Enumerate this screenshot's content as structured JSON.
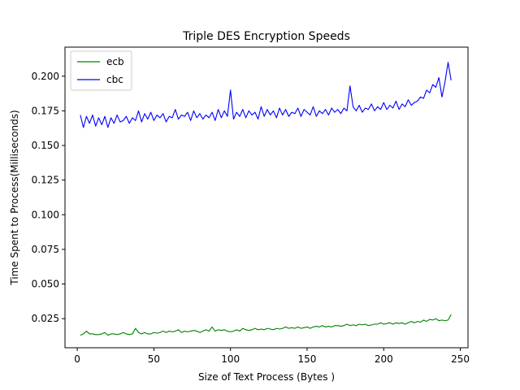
{
  "chart_data": {
    "type": "line",
    "title": "Triple DES Encryption Speeds",
    "xlabel": "Size of Text Process (Bytes )",
    "ylabel": "Time Spent to Process(Milliseconds)",
    "xlim": [
      -8,
      255
    ],
    "ylim": [
      0.004,
      0.221
    ],
    "xticks": [
      0,
      50,
      100,
      150,
      200,
      250
    ],
    "xtick_labels": [
      "0",
      "50",
      "100",
      "150",
      "200",
      "250"
    ],
    "yticks": [
      0.025,
      0.05,
      0.075,
      0.1,
      0.125,
      0.15,
      0.175,
      0.2
    ],
    "ytick_labels": [
      "0.025",
      "0.050",
      "0.075",
      "0.100",
      "0.125",
      "0.150",
      "0.175",
      "0.200"
    ],
    "legend_position": "upper-left",
    "grid": false,
    "series": [
      {
        "name": "ecb",
        "color": "#008000",
        "x": [
          2,
          4,
          6,
          8,
          10,
          12,
          14,
          16,
          18,
          20,
          22,
          24,
          26,
          28,
          30,
          32,
          34,
          36,
          38,
          40,
          42,
          44,
          46,
          48,
          50,
          52,
          54,
          56,
          58,
          60,
          62,
          64,
          66,
          68,
          70,
          72,
          74,
          76,
          78,
          80,
          82,
          84,
          86,
          88,
          90,
          92,
          94,
          96,
          98,
          100,
          102,
          104,
          106,
          108,
          110,
          112,
          114,
          116,
          118,
          120,
          122,
          124,
          126,
          128,
          130,
          132,
          134,
          136,
          138,
          140,
          142,
          144,
          146,
          148,
          150,
          152,
          154,
          156,
          158,
          160,
          162,
          164,
          166,
          168,
          170,
          172,
          174,
          176,
          178,
          180,
          182,
          184,
          186,
          188,
          190,
          192,
          194,
          196,
          198,
          200,
          202,
          204,
          206,
          208,
          210,
          212,
          214,
          216,
          218,
          220,
          222,
          224,
          226,
          228,
          230,
          232,
          234,
          236,
          238,
          240,
          242,
          244
        ],
        "values": [
          0.013,
          0.014,
          0.016,
          0.014,
          0.014,
          0.0135,
          0.0135,
          0.014,
          0.015,
          0.013,
          0.014,
          0.014,
          0.0135,
          0.014,
          0.015,
          0.014,
          0.0135,
          0.014,
          0.018,
          0.015,
          0.014,
          0.015,
          0.014,
          0.014,
          0.015,
          0.0145,
          0.015,
          0.016,
          0.015,
          0.016,
          0.0155,
          0.016,
          0.017,
          0.015,
          0.016,
          0.0155,
          0.016,
          0.0165,
          0.016,
          0.015,
          0.016,
          0.017,
          0.016,
          0.019,
          0.016,
          0.017,
          0.0165,
          0.017,
          0.016,
          0.0155,
          0.016,
          0.017,
          0.016,
          0.018,
          0.017,
          0.0165,
          0.017,
          0.018,
          0.017,
          0.0175,
          0.017,
          0.018,
          0.0175,
          0.017,
          0.018,
          0.0175,
          0.018,
          0.019,
          0.018,
          0.0185,
          0.018,
          0.019,
          0.018,
          0.0185,
          0.019,
          0.018,
          0.019,
          0.0195,
          0.019,
          0.02,
          0.019,
          0.0195,
          0.019,
          0.02,
          0.02,
          0.0195,
          0.02,
          0.021,
          0.02,
          0.0205,
          0.02,
          0.021,
          0.0205,
          0.021,
          0.02,
          0.0205,
          0.021,
          0.021,
          0.022,
          0.021,
          0.0215,
          0.022,
          0.021,
          0.022,
          0.0215,
          0.022,
          0.021,
          0.022,
          0.023,
          0.022,
          0.023,
          0.0225,
          0.024,
          0.023,
          0.0245,
          0.024,
          0.025,
          0.0235,
          0.024,
          0.0235,
          0.024,
          0.028
        ]
      },
      {
        "name": "cbc",
        "color": "#0000ff",
        "x": [
          2,
          4,
          6,
          8,
          10,
          12,
          14,
          16,
          18,
          20,
          22,
          24,
          26,
          28,
          30,
          32,
          34,
          36,
          38,
          40,
          42,
          44,
          46,
          48,
          50,
          52,
          54,
          56,
          58,
          60,
          62,
          64,
          66,
          68,
          70,
          72,
          74,
          76,
          78,
          80,
          82,
          84,
          86,
          88,
          90,
          92,
          94,
          96,
          98,
          100,
          102,
          104,
          106,
          108,
          110,
          112,
          114,
          116,
          118,
          120,
          122,
          124,
          126,
          128,
          130,
          132,
          134,
          136,
          138,
          140,
          142,
          144,
          146,
          148,
          150,
          152,
          154,
          156,
          158,
          160,
          162,
          164,
          166,
          168,
          170,
          172,
          174,
          176,
          178,
          180,
          182,
          184,
          186,
          188,
          190,
          192,
          194,
          196,
          198,
          200,
          202,
          204,
          206,
          208,
          210,
          212,
          214,
          216,
          218,
          220,
          222,
          224,
          226,
          228,
          230,
          232,
          234,
          236,
          238,
          240,
          242,
          244
        ],
        "values": [
          0.172,
          0.163,
          0.171,
          0.166,
          0.172,
          0.164,
          0.17,
          0.165,
          0.171,
          0.163,
          0.17,
          0.166,
          0.172,
          0.167,
          0.168,
          0.171,
          0.166,
          0.17,
          0.168,
          0.175,
          0.167,
          0.173,
          0.169,
          0.174,
          0.168,
          0.172,
          0.17,
          0.173,
          0.167,
          0.171,
          0.17,
          0.176,
          0.169,
          0.172,
          0.171,
          0.174,
          0.168,
          0.175,
          0.17,
          0.173,
          0.169,
          0.172,
          0.17,
          0.174,
          0.168,
          0.176,
          0.17,
          0.175,
          0.171,
          0.19,
          0.169,
          0.174,
          0.171,
          0.176,
          0.17,
          0.175,
          0.172,
          0.174,
          0.169,
          0.178,
          0.171,
          0.176,
          0.172,
          0.175,
          0.17,
          0.177,
          0.172,
          0.176,
          0.171,
          0.174,
          0.173,
          0.177,
          0.171,
          0.176,
          0.174,
          0.172,
          0.178,
          0.171,
          0.175,
          0.173,
          0.176,
          0.172,
          0.177,
          0.174,
          0.176,
          0.173,
          0.177,
          0.175,
          0.193,
          0.178,
          0.175,
          0.179,
          0.174,
          0.177,
          0.176,
          0.18,
          0.175,
          0.178,
          0.176,
          0.181,
          0.176,
          0.179,
          0.177,
          0.182,
          0.176,
          0.18,
          0.178,
          0.183,
          0.179,
          0.181,
          0.182,
          0.185,
          0.184,
          0.19,
          0.188,
          0.194,
          0.192,
          0.199,
          0.185,
          0.196,
          0.21,
          0.197
        ]
      }
    ]
  }
}
